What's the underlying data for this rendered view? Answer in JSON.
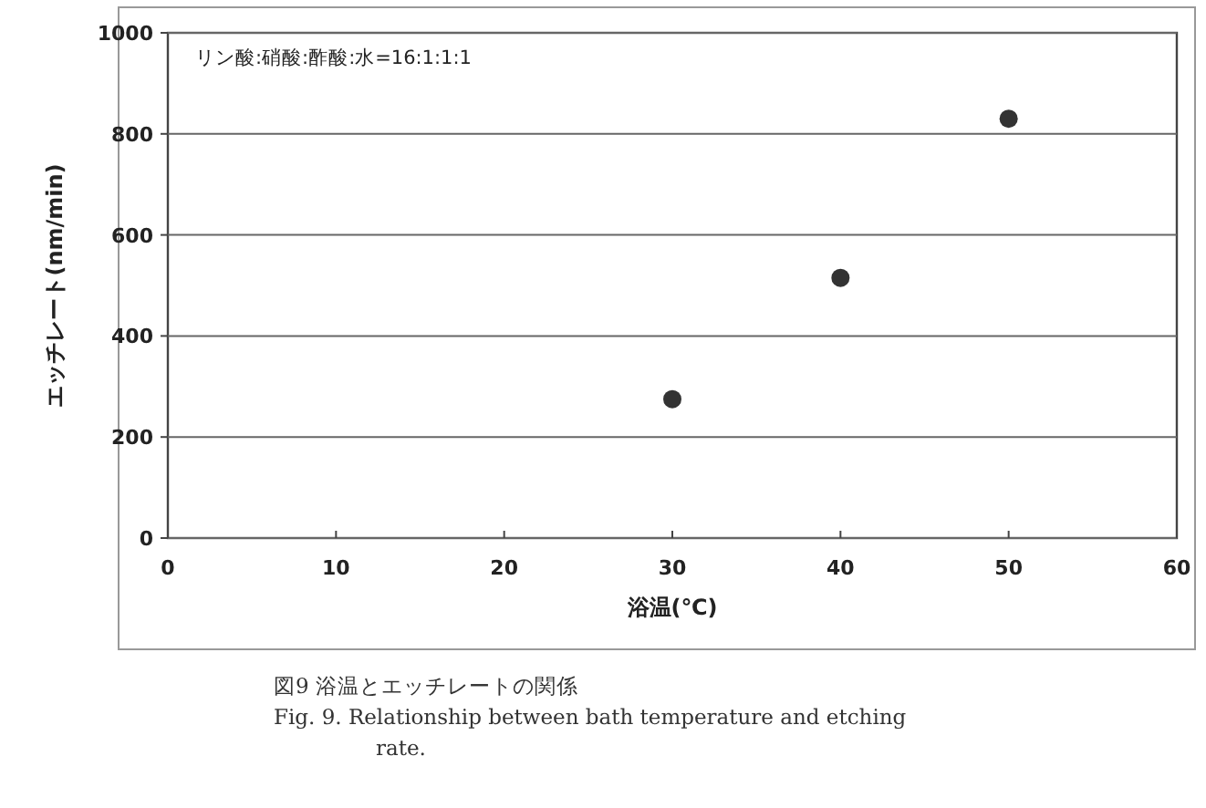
{
  "chart_data": {
    "type": "scatter",
    "xlabel": "浴温(℃)",
    "ylabel": "エッチレート(nm/min)",
    "x": [
      30,
      40,
      50
    ],
    "series": [
      {
        "color": "#333333",
        "values": [
          275,
          515,
          830
        ]
      }
    ],
    "xlim": [
      0,
      60
    ],
    "xticks": [
      0,
      10,
      20,
      30,
      40,
      50,
      60
    ],
    "ylim": [
      0,
      1000
    ],
    "yticks": [
      0,
      200,
      400,
      600,
      800,
      1000
    ],
    "grid": "y",
    "marker": "circle",
    "annotations": [
      "リン酸:硝酸:酢酸:水=16:1:1:1",
      "図9 浴温とエッチレートの関係",
      "Fig. 9. Relationship between bath temperature and etching rate."
    ]
  }
}
